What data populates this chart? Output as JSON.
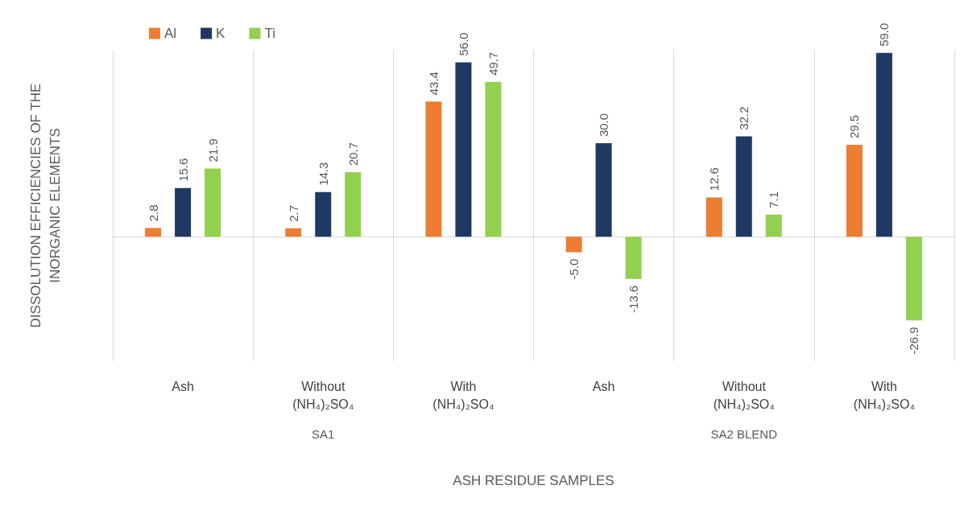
{
  "chart_data": {
    "type": "bar",
    "ylabel": "DISSOLUTION EFFICIENCIES OF THE\nINORGANIC ELEMENTS",
    "xlabel": "ASH RESIDUE SAMPLES",
    "categories": [
      "Ash",
      "Without\n(NH₄)₂SO₄",
      "With\n(NH₄)₂SO₄",
      "Ash",
      "Without\n(NH₄)₂SO₄",
      "With\n(NH₄)₂SO₄"
    ],
    "series": [
      {
        "name": "Al",
        "color": "#ed7d31",
        "values": [
          2.8,
          2.7,
          43.4,
          -5.0,
          12.6,
          29.5
        ],
        "value_labels": [
          "2.8",
          "2.7",
          "43.4",
          "-5.0",
          "12.6",
          "29.5"
        ]
      },
      {
        "name": "K",
        "color": "#1f3864",
        "values": [
          15.6,
          14.3,
          56.0,
          30.0,
          32.2,
          59.0
        ],
        "value_labels": [
          "15.6",
          "14.3",
          "56.0",
          "30.0",
          "32.2",
          "59.0"
        ]
      },
      {
        "name": "Ti",
        "color": "#92d050",
        "values": [
          21.9,
          20.7,
          49.7,
          -13.6,
          7.1,
          -26.9
        ],
        "value_labels": [
          "21.9",
          "20.7",
          "49.7",
          "-13.6",
          "7.1",
          "-26.9"
        ]
      }
    ],
    "annotations": [
      "SA1",
      "SA2 BLEND"
    ],
    "grid": "x",
    "legend": "top left"
  }
}
